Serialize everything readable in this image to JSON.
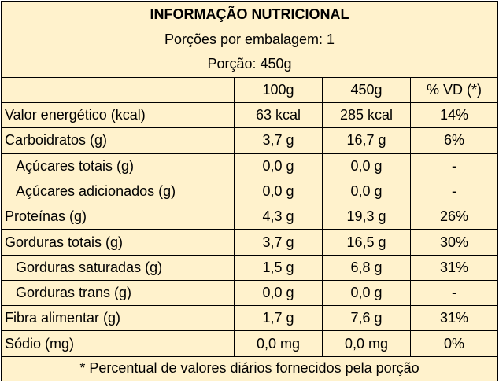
{
  "title": "INFORMAÇÃO NUTRICIONAL",
  "servings_per_package": "Porções por embalagem: 1",
  "serving_size": "Porção: 450g",
  "columns": [
    "100g",
    "450g",
    "% VD (*)"
  ],
  "rows": [
    {
      "name": "Valor energético (kcal)",
      "per100": "63 kcal",
      "per_serving": "285 kcal",
      "dv": "14%"
    },
    {
      "name": "Carboidratos (g)",
      "per100": "3,7 g",
      "per_serving": "16,7 g",
      "dv": "6%"
    },
    {
      "name": "Açúcares totais (g)",
      "per100": "0,0 g",
      "per_serving": "0,0 g",
      "dv": "-"
    },
    {
      "name": "Açúcares adicionados (g)",
      "per100": "0,0 g",
      "per_serving": "0,0 g",
      "dv": "-"
    },
    {
      "name": "Proteínas (g)",
      "per100": "4,3 g",
      "per_serving": "19,3 g",
      "dv": "26%"
    },
    {
      "name": "Gorduras totais (g)",
      "per100": "3,7 g",
      "per_serving": "16,5 g",
      "dv": "30%"
    },
    {
      "name": "Gorduras saturadas (g)",
      "per100": "1,5 g",
      "per_serving": "6,8 g",
      "dv": "31%"
    },
    {
      "name": "Gorduras trans (g)",
      "per100": "0,0 g",
      "per_serving": "0,0 g",
      "dv": "-"
    },
    {
      "name": "Fibra alimentar (g)",
      "per100": "1,7 g",
      "per_serving": "7,6 g",
      "dv": "31%"
    },
    {
      "name": "Sódio (mg)",
      "per100": "0,0 mg",
      "per_serving": "0,0 mg",
      "dv": "0%"
    }
  ],
  "footer": "* Percentual de valores diários fornecidos pela porção",
  "colors": {
    "background": "#fff2cc",
    "border": "#000000"
  }
}
